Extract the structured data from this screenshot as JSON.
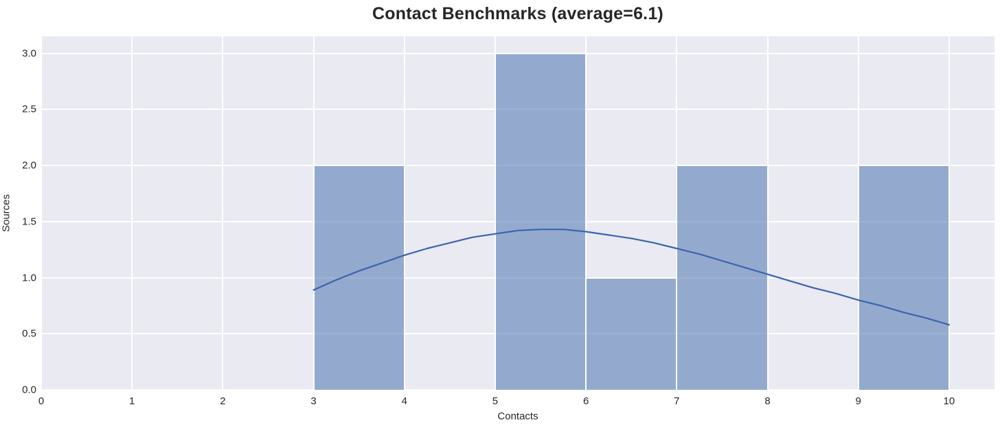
{
  "title": "Contact Benchmarks (average=6.1)",
  "average": 6.1,
  "colors": {
    "plot_background": "#eaeaf2",
    "gridline": "#ffffff",
    "bar_fill_base": "#4c72b0",
    "bar_fill_alpha": 0.55,
    "bar_edge": "#ffffff",
    "kde_line": "#3a64ad",
    "text": "#262626"
  },
  "chart_data": {
    "type": "bar",
    "subtype": "histogram-with-kde",
    "title": "Contact Benchmarks (average=6.1)",
    "xlabel": "Contacts",
    "ylabel": "Sources",
    "xlim": [
      0,
      10.5
    ],
    "ylim": [
      0,
      3.15
    ],
    "xticks": [
      0,
      1,
      2,
      3,
      4,
      5,
      6,
      7,
      8,
      9,
      10
    ],
    "yticks": [
      0.0,
      0.5,
      1.0,
      1.5,
      2.0,
      2.5,
      3.0
    ],
    "ytick_decimals": 1,
    "grid": true,
    "legend": "none",
    "bins": [
      {
        "start": 3,
        "end": 4,
        "count": 2
      },
      {
        "start": 5,
        "end": 6,
        "count": 3
      },
      {
        "start": 6,
        "end": 7,
        "count": 1
      },
      {
        "start": 7,
        "end": 8,
        "count": 2
      },
      {
        "start": 9,
        "end": 10,
        "count": 2
      }
    ],
    "kde_line": {
      "x": [
        3.0,
        3.25,
        3.5,
        3.75,
        4.0,
        4.25,
        4.5,
        4.75,
        5.0,
        5.25,
        5.5,
        5.75,
        6.0,
        6.25,
        6.5,
        6.75,
        7.0,
        7.25,
        7.5,
        7.75,
        8.0,
        8.25,
        8.5,
        8.75,
        9.0,
        9.25,
        9.5,
        9.75,
        10.0
      ],
      "y": [
        0.89,
        0.98,
        1.06,
        1.13,
        1.2,
        1.26,
        1.31,
        1.36,
        1.39,
        1.42,
        1.43,
        1.43,
        1.41,
        1.38,
        1.35,
        1.31,
        1.26,
        1.21,
        1.15,
        1.09,
        1.03,
        0.97,
        0.91,
        0.86,
        0.8,
        0.75,
        0.69,
        0.64,
        0.58
      ]
    }
  }
}
